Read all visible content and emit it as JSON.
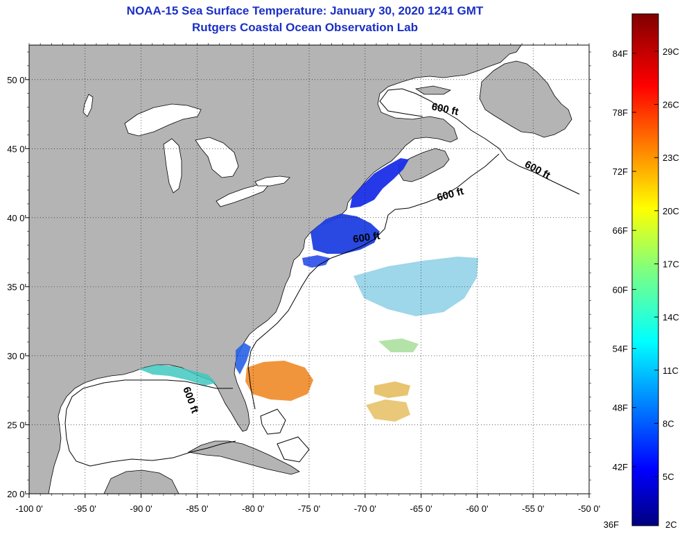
{
  "title": "NOAA-15 Sea Surface Temperature:  January 30, 2020 1241 GMT",
  "subtitle": "Rutgers Coastal Ocean Observation Lab",
  "map": {
    "lon_range": [
      -100,
      -50
    ],
    "lat_range": [
      20,
      52.5
    ],
    "lon_ticks": [
      {
        "value": -100,
        "label": "-100 0'"
      },
      {
        "value": -95,
        "label": "-95 0'"
      },
      {
        "value": -90,
        "label": "-90 0'"
      },
      {
        "value": -85,
        "label": "-85 0'"
      },
      {
        "value": -80,
        "label": "-80 0'"
      },
      {
        "value": -75,
        "label": "-75 0'"
      },
      {
        "value": -70,
        "label": "-70 0'"
      },
      {
        "value": -65,
        "label": "-65 0'"
      },
      {
        "value": -60,
        "label": "-60 0'"
      },
      {
        "value": -55,
        "label": "-55 0'"
      },
      {
        "value": -50,
        "label": "-50 0'"
      }
    ],
    "lat_ticks": [
      {
        "value": 20,
        "label": "20 0'"
      },
      {
        "value": 25,
        "label": "25 0'"
      },
      {
        "value": 30,
        "label": "30 0'"
      },
      {
        "value": 35,
        "label": "35 0'"
      },
      {
        "value": 40,
        "label": "40 0'"
      },
      {
        "value": 45,
        "label": "45 0'"
      },
      {
        "value": 50,
        "label": "50 0'"
      }
    ],
    "contour_label": "600 ft",
    "land_color": "#b4b4b4",
    "ocean_color": "#ffffff",
    "grid": "dotted"
  },
  "colorbar": {
    "min_label_f": "36F",
    "min_label_c": "2C",
    "fahrenheit": [
      {
        "value": 42,
        "label": "42F"
      },
      {
        "value": 48,
        "label": "48F"
      },
      {
        "value": 54,
        "label": "54F"
      },
      {
        "value": 60,
        "label": "60F"
      },
      {
        "value": 66,
        "label": "66F"
      },
      {
        "value": 72,
        "label": "72F"
      },
      {
        "value": 78,
        "label": "78F"
      },
      {
        "value": 84,
        "label": "84F"
      }
    ],
    "celsius": [
      {
        "value": 5,
        "label": "5C"
      },
      {
        "value": 8,
        "label": "8C"
      },
      {
        "value": 11,
        "label": "11C"
      },
      {
        "value": 14,
        "label": "14C"
      },
      {
        "value": 17,
        "label": "17C"
      },
      {
        "value": 20,
        "label": "20C"
      },
      {
        "value": 23,
        "label": "23C"
      },
      {
        "value": 26,
        "label": "26C"
      },
      {
        "value": 29,
        "label": "29C"
      }
    ]
  }
}
